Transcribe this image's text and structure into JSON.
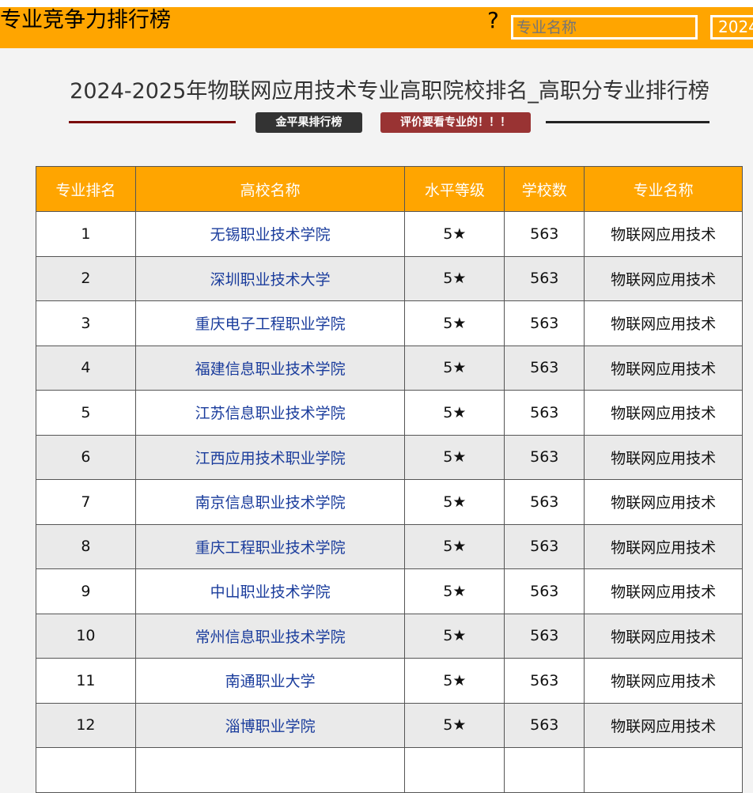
{
  "header": {
    "brand": "专业竞争力排行榜",
    "help_icon": "?",
    "search_placeholder": "专业名称",
    "year": "2024"
  },
  "title": "2024-2025年物联网应用技术专业高职院校排名_高职分专业排行榜",
  "tags": {
    "left": "金平果排行榜",
    "right": "评价要看专业的！！！"
  },
  "colors": {
    "accent": "#ffa500",
    "school_link": "#1a3c9c",
    "tag_left": "#333333",
    "tag_right": "#993333"
  },
  "table": {
    "columns": [
      "专业排名",
      "高校名称",
      "水平等级",
      "学校数",
      "专业名称"
    ],
    "rows": [
      [
        "1",
        "无锡职业技术学院",
        "5★",
        "563",
        "物联网应用技术"
      ],
      [
        "2",
        "深圳职业技术大学",
        "5★",
        "563",
        "物联网应用技术"
      ],
      [
        "3",
        "重庆电子工程职业学院",
        "5★",
        "563",
        "物联网应用技术"
      ],
      [
        "4",
        "福建信息职业技术学院",
        "5★",
        "563",
        "物联网应用技术"
      ],
      [
        "5",
        "江苏信息职业技术学院",
        "5★",
        "563",
        "物联网应用技术"
      ],
      [
        "6",
        "江西应用技术职业学院",
        "5★",
        "563",
        "物联网应用技术"
      ],
      [
        "7",
        "南京信息职业技术学院",
        "5★",
        "563",
        "物联网应用技术"
      ],
      [
        "8",
        "重庆工程职业技术学院",
        "5★",
        "563",
        "物联网应用技术"
      ],
      [
        "9",
        "中山职业技术学院",
        "5★",
        "563",
        "物联网应用技术"
      ],
      [
        "10",
        "常州信息职业技术学院",
        "5★",
        "563",
        "物联网应用技术"
      ],
      [
        "11",
        "南通职业大学",
        "5★",
        "563",
        "物联网应用技术"
      ],
      [
        "12",
        "淄博职业学院",
        "5★",
        "563",
        "物联网应用技术"
      ],
      [
        "",
        "",
        "",
        "",
        ""
      ]
    ]
  }
}
